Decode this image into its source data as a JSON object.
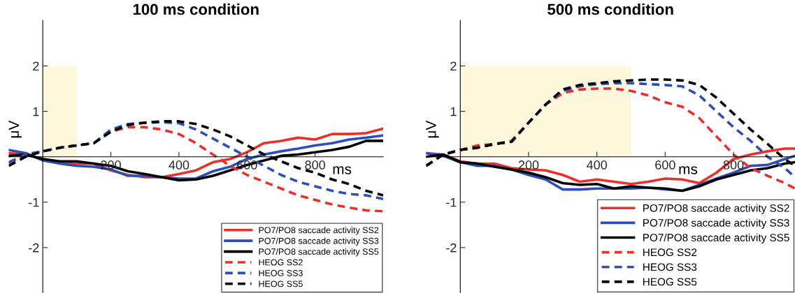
{
  "chart_data": [
    {
      "type": "line",
      "title": "100 ms condition",
      "xlabel": "ms",
      "ylabel": "μV",
      "xlim": [
        -100,
        1000
      ],
      "ylim": [
        -3,
        3
      ],
      "xticks": [
        200,
        400,
        600,
        800
      ],
      "yticks": [
        -2,
        -1,
        1,
        2
      ],
      "grid": false,
      "legend": "bottom right",
      "x": [
        -100,
        -50,
        0,
        50,
        100,
        150,
        200,
        250,
        300,
        350,
        400,
        450,
        500,
        550,
        600,
        650,
        700,
        750,
        800,
        850,
        900,
        950,
        1000
      ],
      "bands": [
        {
          "axis": "x",
          "from": 0,
          "to": 100,
          "color": "#fdf8dc"
        }
      ],
      "series": [
        {
          "name": "PO7/PO8 saccade activity SS2",
          "color": "#e8312a",
          "line_style": "solid",
          "values": [
            0.08,
            0.05,
            -0.05,
            -0.12,
            -0.15,
            -0.15,
            -0.3,
            -0.4,
            -0.45,
            -0.45,
            -0.38,
            -0.3,
            -0.12,
            -0.05,
            0.1,
            0.3,
            0.35,
            0.42,
            0.38,
            0.5,
            0.5,
            0.52,
            0.62
          ]
        },
        {
          "name": "PO7/PO8 saccade activity SS3",
          "color": "#2c4fb5",
          "line_style": "solid",
          "values": [
            0.15,
            0.08,
            -0.08,
            -0.15,
            -0.2,
            -0.22,
            -0.28,
            -0.42,
            -0.42,
            -0.45,
            -0.48,
            -0.48,
            -0.32,
            -0.22,
            -0.05,
            0.05,
            0.12,
            0.18,
            0.25,
            0.3,
            0.38,
            0.42,
            0.47
          ]
        },
        {
          "name": "PO7/PO8 saccade activity SS5",
          "color": "#000000",
          "line_style": "solid",
          "values": [
            0.02,
            0.05,
            -0.05,
            -0.1,
            -0.1,
            -0.15,
            -0.2,
            -0.32,
            -0.38,
            -0.45,
            -0.52,
            -0.5,
            -0.42,
            -0.3,
            -0.18,
            -0.08,
            0.02,
            0.05,
            0.1,
            0.15,
            0.22,
            0.35,
            0.35
          ]
        },
        {
          "name": "HEOG SS2",
          "color": "#e8312a",
          "line_style": "dashed",
          "values": [
            -0.15,
            0.05,
            0.12,
            0.2,
            0.25,
            0.3,
            0.55,
            0.65,
            0.65,
            0.6,
            0.5,
            0.3,
            0.05,
            -0.2,
            -0.4,
            -0.55,
            -0.7,
            -0.85,
            -0.95,
            -1.05,
            -1.12,
            -1.18,
            -1.2
          ]
        },
        {
          "name": "HEOG SS3",
          "color": "#2c4fb5",
          "line_style": "dashed",
          "values": [
            -0.12,
            0.05,
            0.12,
            0.2,
            0.25,
            0.3,
            0.6,
            0.72,
            0.75,
            0.76,
            0.74,
            0.6,
            0.4,
            0.2,
            0.0,
            -0.2,
            -0.4,
            -0.55,
            -0.65,
            -0.75,
            -0.82,
            -0.85,
            -0.93
          ]
        },
        {
          "name": "HEOG SS5",
          "color": "#000000",
          "line_style": "dashed",
          "values": [
            -0.2,
            0.0,
            0.12,
            0.2,
            0.25,
            0.3,
            0.55,
            0.7,
            0.75,
            0.78,
            0.78,
            0.72,
            0.6,
            0.45,
            0.25,
            0.05,
            -0.1,
            -0.25,
            -0.35,
            -0.5,
            -0.6,
            -0.75,
            -0.85
          ]
        }
      ]
    },
    {
      "type": "line",
      "title": "500 ms condition",
      "xlabel": "ms",
      "ylabel": "μV",
      "xlim": [
        -100,
        980
      ],
      "ylim": [
        -3,
        3
      ],
      "xticks": [
        200,
        400,
        600,
        800
      ],
      "yticks": [
        -2,
        -1,
        1,
        2
      ],
      "grid": false,
      "legend": "bottom right",
      "x": [
        -100,
        -50,
        0,
        50,
        100,
        150,
        200,
        250,
        300,
        350,
        400,
        450,
        500,
        550,
        600,
        650,
        700,
        750,
        800,
        850,
        900,
        950,
        980
      ],
      "bands": [
        {
          "axis": "x",
          "from": 0,
          "to": 500,
          "color": "#fdf8dc"
        }
      ],
      "series": [
        {
          "name": "PO7/PO8 saccade activity SS2",
          "color": "#e8312a",
          "line_style": "solid",
          "values": [
            0.08,
            0.05,
            -0.1,
            -0.15,
            -0.15,
            -0.25,
            -0.28,
            -0.3,
            -0.4,
            -0.55,
            -0.5,
            -0.55,
            -0.6,
            -0.55,
            -0.48,
            -0.5,
            -0.58,
            -0.35,
            -0.05,
            0.05,
            0.12,
            0.18,
            0.18
          ]
        },
        {
          "name": "PO7/PO8 saccade activity SS3",
          "color": "#2c4fb5",
          "line_style": "solid",
          "values": [
            0.08,
            0.02,
            -0.12,
            -0.2,
            -0.2,
            -0.28,
            -0.4,
            -0.5,
            -0.72,
            -0.72,
            -0.7,
            -0.7,
            -0.7,
            -0.68,
            -0.72,
            -0.75,
            -0.62,
            -0.48,
            -0.35,
            -0.2,
            -0.18,
            -0.05,
            0.02
          ]
        },
        {
          "name": "PO7/PO8 saccade activity SS5",
          "color": "#000000",
          "line_style": "solid",
          "values": [
            0.0,
            0.05,
            -0.12,
            -0.15,
            -0.22,
            -0.28,
            -0.35,
            -0.45,
            -0.58,
            -0.62,
            -0.6,
            -0.7,
            -0.65,
            -0.68,
            -0.7,
            -0.75,
            -0.65,
            -0.5,
            -0.4,
            -0.3,
            -0.25,
            -0.15,
            -0.12
          ]
        },
        {
          "name": "HEOG SS2",
          "color": "#e8312a",
          "line_style": "dashed",
          "values": [
            -0.2,
            0.05,
            0.15,
            0.25,
            0.28,
            0.35,
            0.75,
            1.15,
            1.4,
            1.48,
            1.5,
            1.5,
            1.45,
            1.35,
            1.2,
            1.1,
            0.85,
            0.45,
            0.05,
            -0.25,
            -0.42,
            -0.58,
            -0.7
          ]
        },
        {
          "name": "HEOG SS3",
          "color": "#2c4fb5",
          "line_style": "dashed",
          "values": [
            -0.2,
            0.05,
            0.15,
            0.2,
            0.28,
            0.33,
            0.75,
            1.15,
            1.45,
            1.55,
            1.6,
            1.62,
            1.62,
            1.6,
            1.58,
            1.55,
            1.35,
            1.0,
            0.65,
            0.35,
            0.0,
            -0.25,
            -0.45
          ]
        },
        {
          "name": "HEOG SS5",
          "color": "#000000",
          "line_style": "dashed",
          "values": [
            -0.2,
            0.05,
            0.15,
            0.2,
            0.28,
            0.33,
            0.75,
            1.15,
            1.48,
            1.58,
            1.62,
            1.66,
            1.68,
            1.7,
            1.7,
            1.68,
            1.58,
            1.3,
            0.95,
            0.6,
            0.28,
            -0.05,
            -0.2
          ]
        }
      ]
    }
  ]
}
